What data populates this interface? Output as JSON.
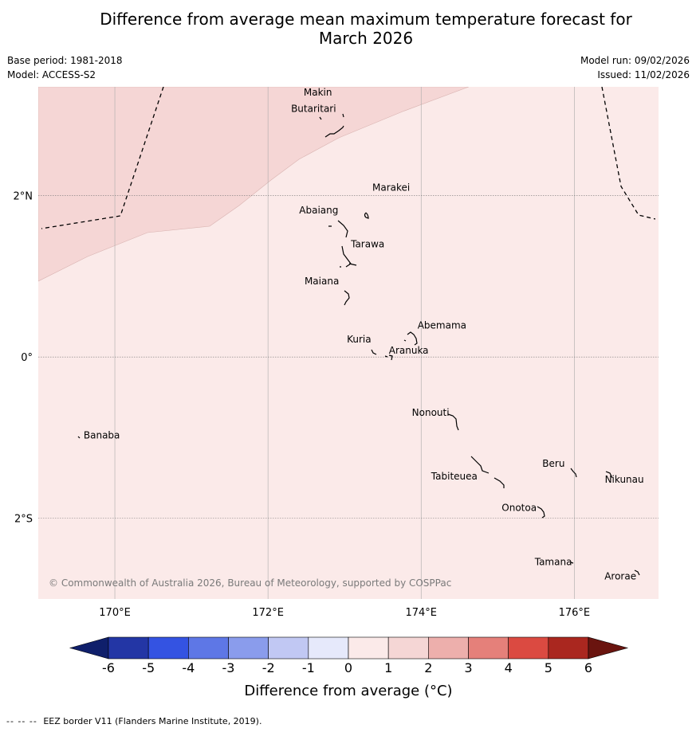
{
  "title_line1": "Difference from average mean maximum temperature forecast for",
  "title_line2": "March 2026",
  "meta": {
    "base_period": "Base period: 1981-2018",
    "model": "Model: ACCESS-S2",
    "model_run": "Model run: 09/02/2026",
    "issued": "Issued: 11/02/2026"
  },
  "map": {
    "lon_range": [
      169,
      177.1
    ],
    "lat_range": [
      -3.0,
      3.35
    ],
    "lon_ticks": [
      170,
      172,
      174,
      176
    ],
    "lon_tick_labels": [
      "170°E",
      "172°E",
      "174°E",
      "176°E"
    ],
    "lat_ticks": [
      2,
      0,
      -2
    ],
    "lat_tick_labels": [
      "2°N",
      "0°",
      "2°S"
    ],
    "background_color": "#fbeae9",
    "warm_region_color": "#f5d6d5",
    "copyright": "© Commonwealth of Australia 2026, Bureau of Meteorology, supported by COSPPac"
  },
  "places": [
    {
      "name": "Makin",
      "lon": 172.92,
      "lat": 3.28
    },
    {
      "name": "Butaritari",
      "lon": 172.9,
      "lat": 3.08
    },
    {
      "name": "Marakei",
      "lon": 173.3,
      "lat": 2.02
    },
    {
      "name": "Abaiang",
      "lon": 172.95,
      "lat": 1.82
    },
    {
      "name": "Tarawa",
      "lon": 173.02,
      "lat": 1.38
    },
    {
      "name": "Maiana",
      "lon": 172.97,
      "lat": 0.92
    },
    {
      "name": "Abemama",
      "lon": 173.88,
      "lat": 0.38
    },
    {
      "name": "Kuria",
      "lon": 173.4,
      "lat": 0.22
    },
    {
      "name": "Aranuka",
      "lon": 173.62,
      "lat": 0.17
    },
    {
      "name": "Banaba",
      "lon": 169.53,
      "lat": -0.87
    },
    {
      "name": "Nonouti",
      "lon": 174.42,
      "lat": -0.65
    },
    {
      "name": "Tabiteuea",
      "lon": 174.85,
      "lat": -1.3
    },
    {
      "name": "Beru",
      "lon": 175.98,
      "lat": -1.33
    },
    {
      "name": "Nikunau",
      "lon": 176.45,
      "lat": -1.35
    },
    {
      "name": "Onotoa",
      "lon": 175.56,
      "lat": -1.82
    },
    {
      "name": "Tamana",
      "lon": 175.98,
      "lat": -2.5
    },
    {
      "name": "Arorae",
      "lon": 176.82,
      "lat": -2.64
    }
  ],
  "colorbar": {
    "tick_labels": [
      "-6",
      "-5",
      "-4",
      "-3",
      "-2",
      "-1",
      "0",
      "1",
      "2",
      "3",
      "4",
      "5",
      "6"
    ],
    "colors": [
      "#2336a5",
      "#3453e2",
      "#5e77e6",
      "#8a9cec",
      "#c1c8f3",
      "#e6e9fb",
      "#fbeae9",
      "#f5d6d5",
      "#edafac",
      "#e5807a",
      "#db4a41",
      "#aa271f"
    ],
    "under_color": "#0f1f6b",
    "over_color": "#6a140f",
    "label": "Difference from average (°C)"
  },
  "footnote": {
    "line_symbol": "-- -- --",
    "text": "EEZ border V11 (Flanders Marine Institute, 2019)."
  }
}
